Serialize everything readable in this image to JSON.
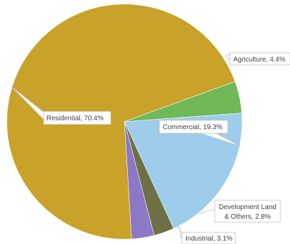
{
  "chart_data": {
    "type": "pie",
    "title": "",
    "slices": [
      {
        "label": "Agriculture, 4.4%",
        "name": "Agriculture",
        "value": 4.4,
        "color": "#70b858"
      },
      {
        "label": "Commercial, 19.3%",
        "name": "Commercial",
        "value": 19.3,
        "color": "#9dcdeb"
      },
      {
        "label_lines": [
          "Development Land",
          "& Others, 2.8%"
        ],
        "name": "Development Land & Others",
        "value": 2.8,
        "color": "#6e7147"
      },
      {
        "label": "Industrial, 3.1%",
        "name": "Industrial",
        "value": 3.1,
        "color": "#8c78c4"
      },
      {
        "label": "Residential, 70.4%",
        "name": "Residential",
        "value": 70.4,
        "color": "#c9a22a"
      }
    ],
    "start_angle_deg": 70,
    "direction": "clockwise",
    "legend": "none",
    "data_labels": "callouts"
  }
}
